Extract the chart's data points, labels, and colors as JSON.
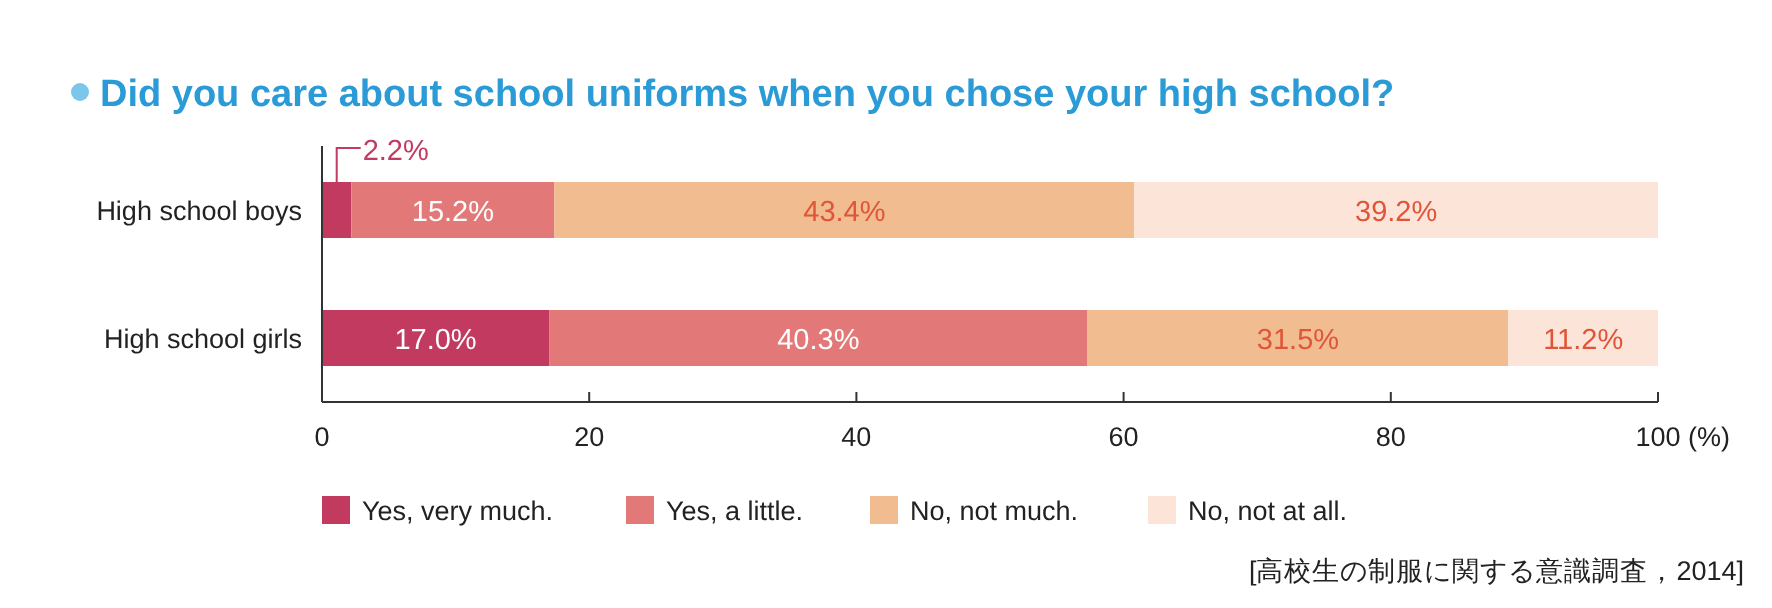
{
  "chart_data": {
    "type": "bar",
    "orientation": "horizontal",
    "stacked": true,
    "title": "Did you care about school uniforms when you chose your high school?",
    "categories": [
      "High school boys",
      "High school girls"
    ],
    "series": [
      {
        "name": "Yes, very much.",
        "color": "#c23a60",
        "values": [
          2.2,
          17.0
        ],
        "value_labels": [
          "2.2%",
          "17.0%"
        ]
      },
      {
        "name": "Yes, a little.",
        "color": "#e27878",
        "values": [
          15.2,
          40.3
        ],
        "value_labels": [
          "15.2%",
          "40.3%"
        ]
      },
      {
        "name": "No, not much.",
        "color": "#f1bc8f",
        "values": [
          43.4,
          31.5
        ],
        "value_labels": [
          "43.4%",
          "31.5%"
        ]
      },
      {
        "name": "No, not at all.",
        "color": "#fce4d8",
        "values": [
          39.2,
          11.2
        ],
        "value_labels": [
          "39.2%",
          "11.2%"
        ]
      }
    ],
    "xlim": [
      0,
      100
    ],
    "xticks": [
      0,
      20,
      40,
      60,
      80,
      {
        "value": 100,
        "label": "100 (%)"
      }
    ],
    "legend": "bottom",
    "annotations": [
      "[高校生の制服に関する意識調査，2014]"
    ]
  }
}
